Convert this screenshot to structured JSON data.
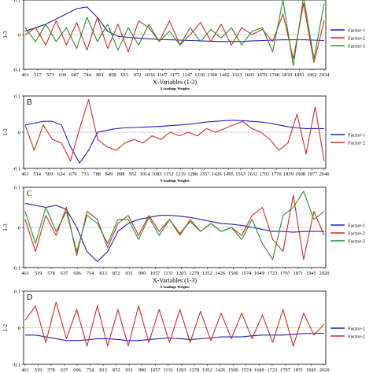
{
  "colors": {
    "factor1": "#1f1fbf",
    "factor2": "#d42a1f",
    "factor3": "#2a8f2a",
    "zero_line": "#c8c8c8"
  },
  "chart_data": [
    {
      "type": "line",
      "panel_letter": "",
      "xlabel": "X-Variables (1-3)",
      "caption": "X-loadings Weights",
      "ylabel": "1-3",
      "ylim": [
        -0.1,
        0.1
      ],
      "yticks": [
        "0.1",
        "0",
        "-0.1"
      ],
      "xticks": [
        "461",
        "517",
        "573",
        "630",
        "687",
        "744",
        "801",
        "858",
        "915",
        "972",
        "1036",
        "1107",
        "1177",
        "1247",
        "1318",
        "1390",
        "1462",
        "1533",
        "1605",
        "1676",
        "1748",
        "1819",
        "1891",
        "1962",
        "2034"
      ],
      "legend": "right",
      "grid": false,
      "series": [
        {
          "name": "Factor-1",
          "values": [
            0.01,
            0.02,
            0.03,
            0.045,
            0.06,
            0.075,
            0.08,
            0.05,
            0.01,
            -0.005,
            -0.008,
            -0.01,
            -0.012,
            -0.014,
            -0.015,
            -0.016,
            -0.017,
            -0.018,
            -0.019,
            -0.02,
            -0.02,
            -0.02,
            -0.018,
            -0.017,
            -0.016,
            -0.015,
            -0.015,
            -0.015,
            -0.016,
            -0.017
          ]
        },
        {
          "name": "Factor-2",
          "values": [
            0.0,
            0.02,
            -0.03,
            0.04,
            -0.03,
            0.035,
            -0.045,
            0.05,
            -0.04,
            0.03,
            -0.05,
            0.04,
            0.02,
            -0.02,
            0.04,
            -0.03,
            0.0,
            0.035,
            -0.02,
            0.03,
            -0.03,
            0.02,
            0.0,
            0.015,
            -0.02,
            0.06,
            -0.07,
            0.09,
            -0.08,
            0.04
          ]
        },
        {
          "name": "Factor-3",
          "values": [
            0.02,
            -0.02,
            0.03,
            -0.02,
            0.02,
            -0.04,
            0.05,
            -0.02,
            0.03,
            -0.045,
            0.02,
            -0.03,
            0.03,
            -0.02,
            0.01,
            -0.03,
            0.02,
            -0.02,
            0.015,
            -0.01,
            0.02,
            -0.03,
            0.01,
            0.02,
            -0.05,
            0.1,
            -0.09,
            0.11,
            -0.07,
            0.09
          ]
        }
      ]
    },
    {
      "type": "line",
      "panel_letter": "B",
      "xlabel": "",
      "caption": "X-loadings Weights",
      "ylabel": "1-2",
      "ylim": [
        -0.1,
        0.1
      ],
      "yticks": [
        "0.1",
        "0",
        "-0.1"
      ],
      "xticks": [
        "461",
        "514",
        "569",
        "624",
        "679",
        "733",
        "788",
        "849",
        "898",
        "952",
        "1014",
        "1083",
        "1152",
        "1219",
        "1288",
        "1357",
        "1426",
        "1495",
        "1563",
        "1632",
        "1701",
        "1770",
        "1839",
        "1908",
        "1977",
        "2046"
      ],
      "legend": "right",
      "grid": false,
      "series": [
        {
          "name": "Factor-1",
          "values": [
            0.02,
            0.025,
            0.03,
            0.03,
            0.02,
            -0.04,
            -0.085,
            -0.05,
            0.0,
            0.005,
            0.01,
            0.012,
            0.013,
            0.014,
            0.015,
            0.016,
            0.018,
            0.02,
            0.022,
            0.025,
            0.028,
            0.03,
            0.032,
            0.033,
            0.032,
            0.03,
            0.028,
            0.025,
            0.02,
            0.015,
            0.012,
            0.01,
            0.01,
            0.01
          ]
        },
        {
          "name": "Factor-2",
          "values": [
            0.02,
            -0.05,
            0.02,
            -0.02,
            -0.03,
            -0.08,
            0.01,
            0.09,
            -0.02,
            -0.04,
            -0.05,
            -0.03,
            -0.02,
            -0.03,
            -0.01,
            -0.02,
            0.0,
            -0.01,
            0.0,
            -0.01,
            0.01,
            0.0,
            0.01,
            0.02,
            0.03,
            0.01,
            0.0,
            -0.02,
            -0.05,
            -0.03,
            0.05,
            -0.06,
            0.07,
            -0.08
          ]
        }
      ]
    },
    {
      "type": "line",
      "panel_letter": "C",
      "xlabel": "X-Variables (1-3)",
      "caption": "X-loadings Weights",
      "ylabel": "1-3",
      "ylim": [
        -0.1,
        0.1
      ],
      "yticks": [
        "0.1",
        "0",
        "-0.1"
      ],
      "xticks": [
        "461",
        "519",
        "578",
        "637",
        "696",
        "754",
        "813",
        "872",
        "931",
        "990",
        "1057",
        "1131",
        "1203",
        "1278",
        "1352",
        "1426",
        "1500",
        "1574",
        "1649",
        "1723",
        "1797",
        "1871",
        "1945",
        "2020"
      ],
      "legend": "right",
      "grid": false,
      "series": [
        {
          "name": "Factor-1",
          "values": [
            0.06,
            0.055,
            0.05,
            0.055,
            0.045,
            0.0,
            -0.06,
            -0.085,
            -0.06,
            -0.01,
            0.01,
            0.02,
            0.025,
            0.03,
            0.03,
            0.028,
            0.025,
            0.02,
            0.015,
            0.01,
            0.008,
            0.005,
            0.0,
            -0.005,
            -0.01,
            -0.01,
            -0.012,
            -0.01,
            -0.01,
            -0.01
          ]
        },
        {
          "name": "Factor-2",
          "values": [
            0.02,
            -0.06,
            0.03,
            -0.02,
            0.05,
            -0.07,
            0.04,
            0.02,
            -0.05,
            0.01,
            0.03,
            -0.02,
            0.03,
            -0.01,
            0.02,
            -0.02,
            0.02,
            -0.01,
            0.01,
            -0.01,
            0.0,
            -0.02,
            0.03,
            0.05,
            -0.03,
            -0.06,
            0.08,
            -0.08,
            0.04,
            -0.02
          ]
        },
        {
          "name": "Factor-3",
          "values": [
            0.04,
            -0.04,
            0.05,
            -0.01,
            0.04,
            -0.06,
            0.03,
            0.01,
            -0.04,
            0.02,
            0.02,
            -0.03,
            0.025,
            -0.02,
            0.02,
            -0.015,
            0.015,
            -0.01,
            0.01,
            -0.01,
            0.0,
            -0.03,
            0.02,
            -0.04,
            -0.08,
            0.03,
            0.05,
            0.09,
            0.02,
            0.04
          ]
        }
      ]
    },
    {
      "type": "line",
      "panel_letter": "D",
      "xlabel": "",
      "caption": "",
      "ylabel": "1-2",
      "ylim": [
        -0.1,
        0.1
      ],
      "yticks": [
        "0.1",
        "0",
        "-0.1"
      ],
      "xticks": [
        "461",
        "519",
        "578",
        "637",
        "696",
        "754",
        "813",
        "872",
        "931",
        "990",
        "1057",
        "1131",
        "1203",
        "1278",
        "1352",
        "1426",
        "1500",
        "1574",
        "1649",
        "1723",
        "1797",
        "1871",
        "1945",
        "2020"
      ],
      "legend": "right",
      "grid": false,
      "series": [
        {
          "name": "Factor-1",
          "values": [
            -0.02,
            -0.02,
            -0.025,
            -0.03,
            -0.035,
            -0.035,
            -0.033,
            -0.03,
            -0.03,
            -0.032,
            -0.035,
            -0.035,
            -0.032,
            -0.03,
            -0.028,
            -0.03,
            -0.032,
            -0.03,
            -0.028,
            -0.025,
            -0.025,
            -0.025,
            -0.022,
            -0.02,
            -0.02,
            -0.02,
            -0.018,
            -0.016,
            -0.015,
            -0.015
          ]
        },
        {
          "name": "Factor-2",
          "values": [
            0.02,
            0.06,
            -0.04,
            0.07,
            -0.03,
            0.05,
            -0.05,
            0.06,
            -0.05,
            0.05,
            -0.05,
            0.06,
            -0.04,
            0.05,
            -0.04,
            0.05,
            -0.04,
            0.045,
            -0.035,
            0.04,
            -0.03,
            0.04,
            -0.03,
            0.035,
            -0.04,
            0.05,
            -0.05,
            0.04,
            -0.02,
            0.01
          ]
        }
      ]
    }
  ]
}
